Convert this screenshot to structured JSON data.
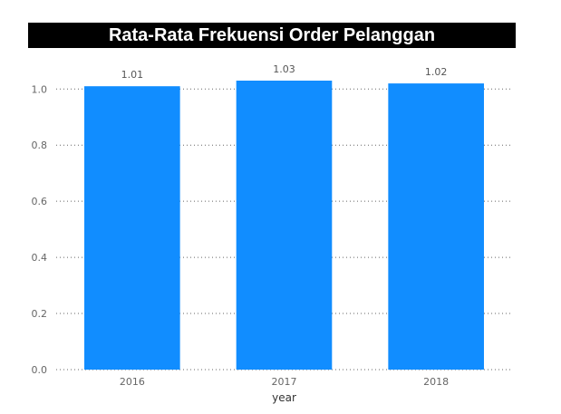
{
  "chart_data": {
    "type": "bar",
    "title": "Rata-Rata Frekuensi Order Pelanggan",
    "xlabel": "year",
    "ylabel": "",
    "categories": [
      "2016",
      "2017",
      "2018"
    ],
    "values": [
      1.01,
      1.03,
      1.02
    ],
    "data_labels": [
      "1.01",
      "1.03",
      "1.02"
    ],
    "yticks": [
      0.0,
      0.2,
      0.4,
      0.6,
      0.8,
      1.0
    ],
    "ytick_labels": [
      "0.0",
      "0.2",
      "0.4",
      "0.6",
      "0.8",
      "1.0"
    ],
    "ylim": [
      0,
      1.03
    ],
    "grid": true,
    "bar_color": "#118DFF",
    "title_background": "#000000",
    "title_color": "#FFFFFF"
  }
}
